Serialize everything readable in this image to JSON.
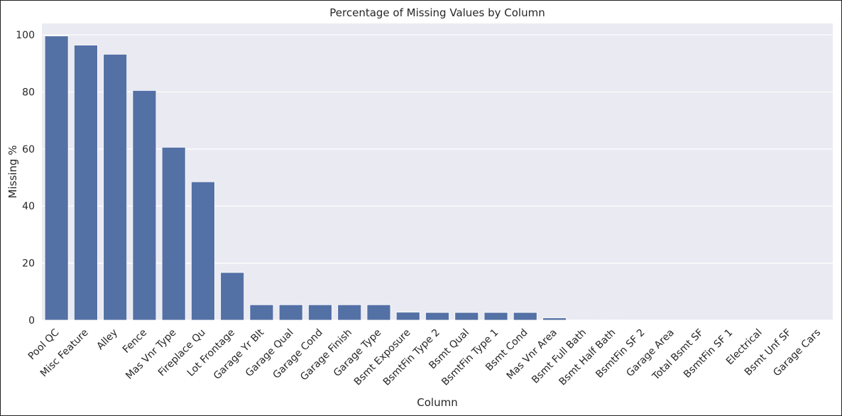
{
  "chart_data": {
    "type": "bar",
    "title": "Percentage of Missing Values by Column",
    "xlabel": "Column",
    "ylabel": "Missing %",
    "ylim": [
      0,
      104
    ],
    "yticks": [
      0,
      20,
      40,
      60,
      80,
      100
    ],
    "grid": true,
    "bar_color": "#5471a5",
    "background_color": "#eaeaf2",
    "categories": [
      "Pool QC",
      "Misc Feature",
      "Alley",
      "Fence",
      "Mas Vnr Type",
      "Fireplace Qu",
      "Lot Frontage",
      "Garage Yr Blt",
      "Garage Qual",
      "Garage Cond",
      "Garage Finish",
      "Garage Type",
      "Bsmt Exposure",
      "BsmtFin Type 2",
      "Bsmt Qual",
      "BsmtFin Type 1",
      "Bsmt Cond",
      "Mas Vnr Area",
      "Bsmt Full Bath",
      "Bsmt Half Bath",
      "BsmtFin SF 2",
      "Garage Area",
      "Total Bsmt SF",
      "BsmtFin SF 1",
      "Electrical",
      "Bsmt Unf SF",
      "Garage Cars"
    ],
    "values": [
      99.6,
      96.4,
      93.2,
      80.5,
      60.6,
      48.5,
      16.7,
      5.4,
      5.4,
      5.4,
      5.4,
      5.4,
      2.8,
      2.7,
      2.7,
      2.7,
      2.7,
      0.8,
      0.07,
      0.07,
      0.03,
      0.03,
      0.03,
      0.03,
      0.03,
      0.03,
      0.03
    ]
  }
}
